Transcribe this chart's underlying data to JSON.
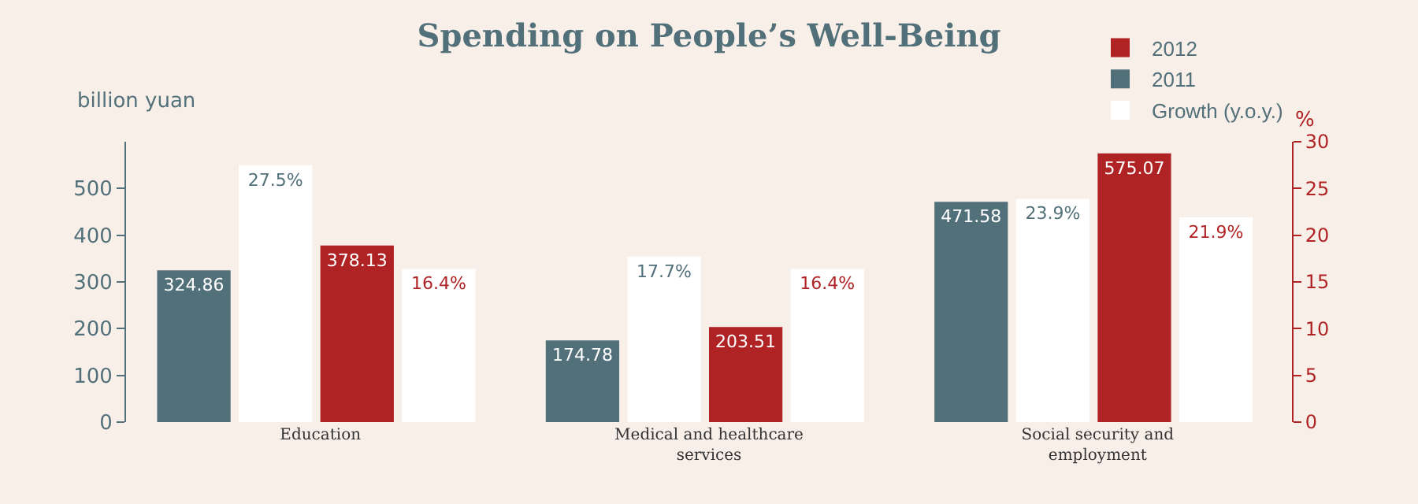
{
  "chart_data": {
    "type": "bar",
    "title": "Spending on People’s Well-Being",
    "ylabel": "billion yuan",
    "y2label": "%",
    "categories": [
      "Education",
      "Medical and healthcare services",
      "Social security and employment"
    ],
    "series": [
      {
        "name": "2011",
        "color": "#52707a",
        "values": [
          324.86,
          174.78,
          471.58
        ],
        "value_labels": [
          "324.86",
          "174.78",
          "471.58"
        ]
      },
      {
        "name": "Growth (y.o.y.)",
        "color": "#ffffff",
        "axis": "y2",
        "values": [
          27.5,
          17.7,
          23.9
        ],
        "value_labels": [
          "27.5%",
          "17.7%",
          "23.9%"
        ]
      },
      {
        "name": "2012",
        "color": "#b02324",
        "values": [
          378.13,
          203.51,
          575.07
        ],
        "value_labels": [
          "378.13",
          "203.51",
          "575.07"
        ]
      },
      {
        "color": "#ffffff",
        "axis": "y2",
        "values": [
          16.4,
          16.4,
          21.9
        ],
        "value_labels": [
          "16.4%",
          "16.4%",
          "21.9%"
        ]
      }
    ],
    "ylim": [
      0,
      600
    ],
    "yticks": [
      0,
      100,
      200,
      300,
      400,
      500
    ],
    "y2lim": [
      0,
      30
    ],
    "y2ticks": [
      0,
      5,
      10,
      15,
      20,
      25,
      30
    ],
    "grid": false,
    "legend": "top right"
  }
}
